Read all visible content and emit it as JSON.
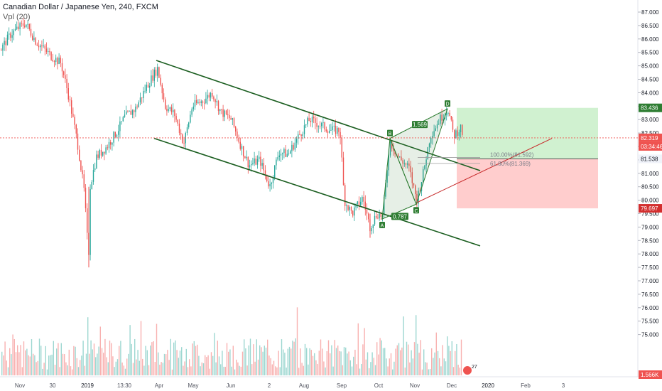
{
  "header": {
    "title": "Canadian Dollar / Japanese Yen, 240, FXCM",
    "indicator": "Vpl (20)"
  },
  "colors": {
    "up": "#26a69a",
    "down": "#ef5350",
    "channel": "#1b5e20",
    "harmonic": "#2e7d32",
    "target_zone": "#c8efc8",
    "stop_zone": "#ffc4c4",
    "price_line": "#ef5350"
  },
  "chart_data": {
    "type": "candlestick",
    "symbol": "CADJPY",
    "timeframe": "240",
    "y_axis": {
      "range": [
        74.5,
        87.3
      ],
      "ticks": [
        "87.000",
        "86.500",
        "86.000",
        "85.500",
        "85.000",
        "84.500",
        "84.000",
        "83.500",
        "83.000",
        "82.500",
        "82.000",
        "81.500",
        "81.000",
        "80.500",
        "80.000",
        "79.500",
        "79.000",
        "78.500",
        "78.000",
        "77.500",
        "77.000",
        "76.500",
        "76.000",
        "75.500",
        "75.000"
      ]
    },
    "x_axis": {
      "labels": [
        "Nov",
        "30",
        "2019",
        "13:30",
        "Apr",
        "May",
        "Jun",
        "2",
        "Aug",
        "Sep",
        "Oct",
        "Nov",
        "Dec",
        "2020",
        "Feb",
        "3"
      ]
    },
    "price_labels": [
      {
        "value": "83.436",
        "type": "target"
      },
      {
        "value": "82.319",
        "type": "current"
      },
      {
        "value": "03:34:46",
        "type": "countdown"
      },
      {
        "value": "81.538",
        "type": "entry"
      },
      {
        "value": "79.697",
        "type": "stop"
      },
      {
        "value": "1.566K",
        "type": "volume"
      }
    ],
    "pattern_points": [
      {
        "label": "A",
        "price": 79.3
      },
      {
        "label": "B",
        "price": 82.3
      },
      {
        "label": "C",
        "price": 79.85
      },
      {
        "label": "D",
        "price": 83.4
      }
    ],
    "pattern_ratios": [
      "0.787",
      "1.569"
    ],
    "fib_levels": [
      {
        "label": "100.00%(81.592)",
        "price": 81.592
      },
      {
        "label": "61.80%(81.369)",
        "price": 81.369
      }
    ],
    "channel_upper": {
      "from": {
        "month": "Feb 2019",
        "price": 85.2
      },
      "to": {
        "month": "Nov 2019",
        "price": 81.3
      }
    },
    "channel_lower": {
      "from": {
        "month": "Feb 2019",
        "price": 82.5
      },
      "to": {
        "month": "Nov 2019",
        "price": 78.3
      }
    },
    "position": {
      "entry": 81.538,
      "target": 83.436,
      "stop": 79.697
    },
    "current_price": 82.319,
    "volume_badge": "27"
  }
}
